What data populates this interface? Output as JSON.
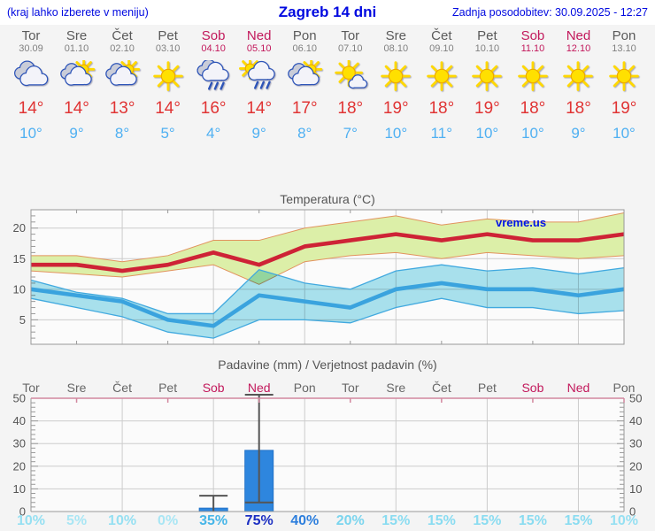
{
  "header": {
    "hint": "(kraj lahko izberete v meniju)",
    "title": "Zagreb 14 dni",
    "updated": "Zadnja posodobitev: 30.09.2025 - 12:27"
  },
  "watermark": "vreme.us",
  "days": [
    {
      "name": "Tor",
      "date": "30.09",
      "weekend": false,
      "icon": "cloudy",
      "tmax": "14°",
      "tmin": "10°",
      "prob": "10%",
      "prob_value": 10
    },
    {
      "name": "Sre",
      "date": "01.10",
      "weekend": false,
      "icon": "sun-cloud",
      "tmax": "14°",
      "tmin": "9°",
      "prob": "5%",
      "prob_value": 5
    },
    {
      "name": "Čet",
      "date": "02.10",
      "weekend": false,
      "icon": "sun-cloud",
      "tmax": "13°",
      "tmin": "8°",
      "prob": "10%",
      "prob_value": 10
    },
    {
      "name": "Pet",
      "date": "03.10",
      "weekend": false,
      "icon": "sun",
      "tmax": "14°",
      "tmin": "5°",
      "prob": "0%",
      "prob_value": 0
    },
    {
      "name": "Sob",
      "date": "04.10",
      "weekend": true,
      "icon": "rain",
      "tmax": "16°",
      "tmin": "4°",
      "prob": "35%",
      "prob_value": 35
    },
    {
      "name": "Ned",
      "date": "05.10",
      "weekend": true,
      "icon": "sun-rain",
      "tmax": "14°",
      "tmin": "9°",
      "prob": "75%",
      "prob_value": 75
    },
    {
      "name": "Pon",
      "date": "06.10",
      "weekend": false,
      "icon": "sun-cloud",
      "tmax": "17°",
      "tmin": "8°",
      "prob": "40%",
      "prob_value": 40
    },
    {
      "name": "Tor",
      "date": "07.10",
      "weekend": false,
      "icon": "sun-small-cloud",
      "tmax": "18°",
      "tmin": "7°",
      "prob": "20%",
      "prob_value": 20
    },
    {
      "name": "Sre",
      "date": "08.10",
      "weekend": false,
      "icon": "sun",
      "tmax": "19°",
      "tmin": "10°",
      "prob": "15%",
      "prob_value": 15
    },
    {
      "name": "Čet",
      "date": "09.10",
      "weekend": false,
      "icon": "sun",
      "tmax": "18°",
      "tmin": "11°",
      "prob": "15%",
      "prob_value": 15
    },
    {
      "name": "Pet",
      "date": "10.10",
      "weekend": false,
      "icon": "sun",
      "tmax": "19°",
      "tmin": "10°",
      "prob": "15%",
      "prob_value": 15
    },
    {
      "name": "Sob",
      "date": "11.10",
      "weekend": true,
      "icon": "sun",
      "tmax": "18°",
      "tmin": "10°",
      "prob": "15%",
      "prob_value": 15
    },
    {
      "name": "Ned",
      "date": "12.10",
      "weekend": true,
      "icon": "sun",
      "tmax": "18°",
      "tmin": "9°",
      "prob": "15%",
      "prob_value": 15
    },
    {
      "name": "Pon",
      "date": "13.10",
      "weekend": false,
      "icon": "sun",
      "tmax": "19°",
      "tmin": "10°",
      "prob": "10%",
      "prob_value": 10
    }
  ],
  "chart_data": [
    {
      "type": "line",
      "title": "Temperatura (°C)",
      "watermark": "vreme.us",
      "categories": [
        "Tor 30.09",
        "Sre 01.10",
        "Čet 02.10",
        "Pet 03.10",
        "Sob 04.10",
        "Ned 05.10",
        "Pon 06.10",
        "Tor 07.10",
        "Sre 08.10",
        "Čet 09.10",
        "Pet 10.10",
        "Sob 11.10",
        "Ned 12.10",
        "Pon 13.10"
      ],
      "series": [
        {
          "name": "max_temp",
          "values": [
            14,
            14,
            13,
            14,
            16,
            14,
            17,
            18,
            19,
            18,
            19,
            18,
            18,
            19
          ]
        },
        {
          "name": "min_temp",
          "values": [
            10,
            9,
            8,
            5,
            4,
            9,
            8,
            7,
            10,
            11,
            10,
            10,
            9,
            10
          ]
        },
        {
          "name": "max_band_upper",
          "values": [
            15.5,
            15.5,
            14.5,
            15.5,
            18,
            18,
            20,
            21,
            22,
            20.5,
            21.5,
            21,
            21,
            22.5
          ]
        },
        {
          "name": "max_band_lower",
          "values": [
            13,
            12.5,
            12,
            13,
            14,
            10.8,
            14.5,
            15.5,
            16,
            15,
            16,
            15.5,
            15,
            15.5
          ]
        },
        {
          "name": "min_band_upper",
          "values": [
            11.5,
            9.5,
            8.5,
            6,
            6,
            13.2,
            11,
            10,
            13,
            14,
            13,
            13.5,
            12.5,
            13.5
          ]
        },
        {
          "name": "min_band_lower",
          "values": [
            8.5,
            7,
            5.5,
            3,
            2,
            5,
            5,
            4.5,
            7,
            8.5,
            7,
            7,
            6,
            6.5
          ]
        }
      ],
      "ylim": [
        1,
        23
      ],
      "yticks": [
        5,
        10,
        15,
        20
      ],
      "grid": "on",
      "legend": "none"
    },
    {
      "type": "bar",
      "title": "Padavine (mm) / Verjetnost padavin (%)",
      "categories": [
        "Tor",
        "Sre",
        "Čet",
        "Pet",
        "Sob",
        "Ned",
        "Pon",
        "Tor",
        "Sre",
        "Čet",
        "Pet",
        "Sob",
        "Ned",
        "Pon"
      ],
      "precip_mm": [
        0,
        0,
        0,
        0,
        1.5,
        27,
        0,
        0,
        0,
        0,
        0,
        0,
        0,
        0
      ],
      "whiskers": [
        {
          "day_index": 4,
          "min": 0,
          "max": 7
        },
        {
          "day_index": 5,
          "min": 4,
          "max": 52
        }
      ],
      "probability_pct": [
        10,
        5,
        10,
        0,
        35,
        75,
        40,
        20,
        15,
        15,
        15,
        15,
        15,
        10
      ],
      "ylim": [
        0,
        50
      ],
      "yticks": [
        0,
        10,
        20,
        30,
        40,
        50
      ],
      "grid": "on",
      "legend": "none"
    }
  ],
  "colors": {
    "header_text": "#0009e0",
    "weekend": "#c2185b",
    "weekday": "#5a5a5a",
    "max_temp": "#e03434",
    "min_temp": "#4fb0f2",
    "temp_line_max": "#ce2336",
    "temp_line_min": "#3aa3de",
    "band_max_fill": "#dcefa8",
    "band_max_edge": "#e2935e",
    "band_min_fill": "#abe4f0",
    "band_min_edge": "#41a9df",
    "bar_fill": "#2e86de",
    "whisker": "#555555",
    "precip_top_spine": "#d2879e",
    "prob_colors": {
      "0": "#a9e6f4",
      "5": "#a9e6f4",
      "10": "#96e0f2",
      "15": "#8adcf1",
      "20": "#7bd5ee",
      "35": "#47b6e8",
      "40": "#2e7fdd",
      "75": "#1c2fc2"
    }
  }
}
